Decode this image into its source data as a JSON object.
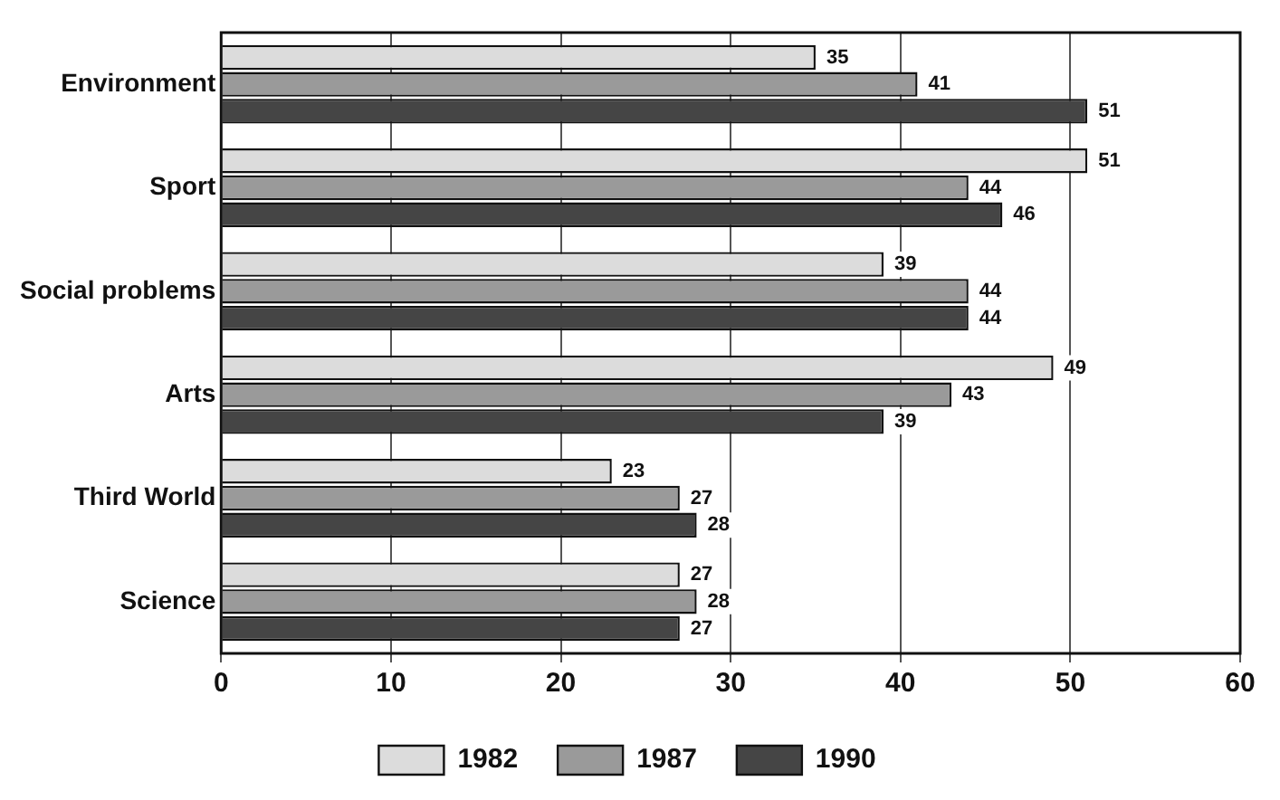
{
  "chart_data": {
    "type": "bar",
    "orientation": "horizontal",
    "categories": [
      "Environment",
      "Sport",
      "Social problems",
      "Arts",
      "Third World",
      "Science"
    ],
    "series": [
      {
        "name": "1982",
        "color": "#dcdcdc",
        "values": [
          35,
          51,
          39,
          49,
          23,
          27
        ]
      },
      {
        "name": "1987",
        "color": "#9a9a9a",
        "values": [
          41,
          44,
          44,
          43,
          27,
          28
        ]
      },
      {
        "name": "1990",
        "color": "#454545",
        "values": [
          51,
          46,
          44,
          39,
          28,
          27
        ]
      }
    ],
    "xlim": [
      0,
      60
    ],
    "xticks": [
      0,
      10,
      20,
      30,
      40,
      50,
      60
    ],
    "grid": "x",
    "legend": "bottom",
    "data_labels": true
  }
}
